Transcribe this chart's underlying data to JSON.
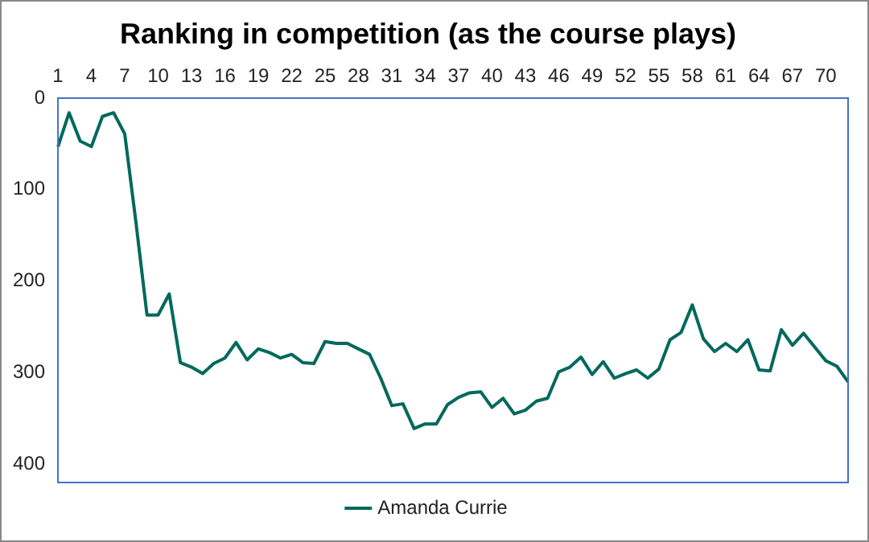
{
  "chart_data": {
    "type": "line",
    "title": "Ranking in competition (as the course plays)",
    "categories": [
      "1",
      null,
      null,
      "4",
      null,
      null,
      "7",
      null,
      null,
      "10",
      null,
      null,
      "13",
      null,
      null,
      "16",
      null,
      null,
      "19",
      null,
      null,
      "22",
      null,
      null,
      "25",
      null,
      null,
      "28",
      null,
      null,
      "31",
      null,
      null,
      "34",
      null,
      null,
      "37",
      null,
      null,
      "40",
      null,
      null,
      "43",
      null,
      null,
      "46",
      null,
      null,
      "49",
      null,
      null,
      "52",
      null,
      null,
      "55",
      null,
      null,
      "58",
      null,
      null,
      "61",
      null,
      null,
      "64",
      null,
      null,
      "67",
      null,
      null,
      "70",
      null,
      null
    ],
    "series": [
      {
        "name": "Amanda Currie",
        "color": "#00695c",
        "values": [
          53,
          16,
          47,
          53,
          20,
          16,
          39,
          135,
          237,
          237,
          214,
          289,
          294,
          301,
          290,
          284,
          267,
          286,
          274,
          278,
          284,
          280,
          289,
          290,
          266,
          268,
          268,
          274,
          280,
          306,
          336,
          334,
          361,
          356,
          356,
          335,
          327,
          322,
          321,
          338,
          328,
          345,
          341,
          331,
          328,
          299,
          294,
          283,
          302,
          288,
          306,
          301,
          297,
          306,
          296,
          264,
          256,
          226,
          263,
          277,
          268,
          277,
          264,
          297,
          298,
          253,
          270,
          257,
          272,
          287,
          293,
          310
        ]
      }
    ],
    "ylim": [
      420,
      0
    ],
    "yticks": [
      0,
      100,
      200,
      300,
      400
    ],
    "grid": false,
    "legend": "bottom",
    "marker": "none",
    "line_style": "solid"
  }
}
